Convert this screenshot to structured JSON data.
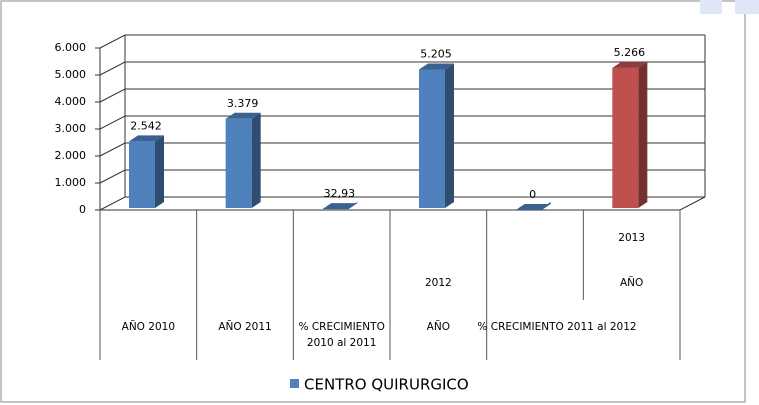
{
  "chart_data": {
    "type": "bar3d",
    "categories": [
      [
        "AÑO 2010"
      ],
      [
        "AÑO 2011"
      ],
      [
        "% CRECIMIENTO",
        "2010 al 2011"
      ],
      [
        "2012",
        "AÑO"
      ],
      [
        "% CRECIMIENTO  2011 al 2012"
      ],
      [
        "2013",
        "AÑO"
      ]
    ],
    "series": [
      {
        "name": "CENTRO QUIRURGICO",
        "color": "#4f81bd",
        "values": [
          2542,
          3379,
          32.93,
          5205,
          0,
          5266
        ],
        "value_labels": [
          "2.542",
          "3.379",
          "32,93",
          "5.205",
          "0",
          "5.266"
        ],
        "point_colors": [
          "#4f81bd",
          "#4f81bd",
          "#4f81bd",
          "#4f81bd",
          "#4f81bd",
          "#c0504d"
        ]
      }
    ],
    "ylim": [
      0,
      6000
    ],
    "yticks": [
      0,
      {
        "value": 1000,
        "label": "1.000"
      },
      {
        "value": 2000,
        "label": "2.000"
      },
      {
        "value": 3000,
        "label": "3.000"
      },
      {
        "value": 4000,
        "label": "4.000"
      },
      {
        "value": 5000,
        "label": "5.000"
      },
      {
        "value": 6000,
        "label": "6.000"
      }
    ],
    "grid": true,
    "legend": "bottom"
  }
}
